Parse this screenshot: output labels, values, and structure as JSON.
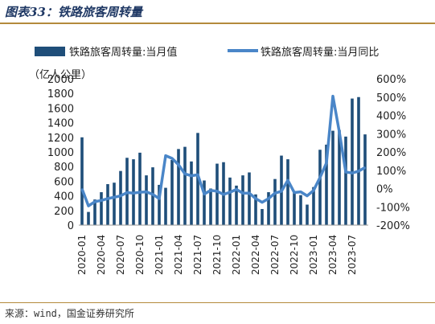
{
  "figure_title": "图表33：铁路旅客周转量",
  "source": "来源：wind，国金证券研究所",
  "chart_data": {
    "type": "bar+line",
    "title": "图表33：铁路旅客周转量",
    "y_left_label": "（亿人公里）",
    "y_left_range": [
      0,
      2000
    ],
    "y_left_ticks": [
      "0",
      "200",
      "400",
      "600",
      "800",
      "1000",
      "1200",
      "1400",
      "1600",
      "1800",
      "2000"
    ],
    "y_right_range": [
      -200,
      600
    ],
    "y_right_ticks": [
      "-200%",
      "-100%",
      "0%",
      "100%",
      "200%",
      "300%",
      "400%",
      "500%",
      "600%"
    ],
    "x_tick_labels": [
      "2020-01",
      "2020-04",
      "2020-07",
      "2020-10",
      "2021-01",
      "2021-04",
      "2021-07",
      "2021-10",
      "2022-01",
      "2022-04",
      "2022-07",
      "2022-10",
      "2023-01",
      "2023-04",
      "2023-07"
    ],
    "legend_placement": "top",
    "categories": [
      "2020-01",
      "2020-02",
      "2020-03",
      "2020-04",
      "2020-05",
      "2020-06",
      "2020-07",
      "2020-08",
      "2020-09",
      "2020-10",
      "2020-11",
      "2020-12",
      "2021-01",
      "2021-02",
      "2021-03",
      "2021-04",
      "2021-05",
      "2021-06",
      "2021-07",
      "2021-08",
      "2021-09",
      "2021-10",
      "2021-11",
      "2021-12",
      "2022-01",
      "2022-02",
      "2022-03",
      "2022-04",
      "2022-05",
      "2022-06",
      "2022-07",
      "2022-08",
      "2022-09",
      "2022-10",
      "2022-11",
      "2022-12",
      "2023-01",
      "2023-02",
      "2023-03",
      "2023-04",
      "2023-05",
      "2023-06",
      "2023-07",
      "2023-08",
      "2023-09"
    ],
    "series": [
      {
        "name": "铁路旅客周转量:当月值",
        "kind": "bar",
        "axis": "left",
        "color": "#1f4e79",
        "values": [
          1200,
          180,
          350,
          450,
          560,
          580,
          740,
          920,
          900,
          990,
          680,
          790,
          550,
          510,
          890,
          1040,
          1070,
          870,
          1260,
          610,
          500,
          840,
          860,
          650,
          540,
          680,
          720,
          420,
          220,
          450,
          630,
          950,
          900,
          450,
          410,
          280,
          520,
          1030,
          1100,
          1290,
          1300,
          1210,
          1730,
          1750,
          1240
        ]
      },
      {
        "name": "铁路旅客周转量:当月同比",
        "kind": "line",
        "axis": "right",
        "color": "#4a86c8",
        "values": [
          -2,
          -95,
          -72,
          -65,
          -55,
          -48,
          -40,
          -22,
          -25,
          -20,
          -18,
          -32,
          -55,
          180,
          165,
          130,
          80,
          70,
          75,
          -30,
          -10,
          -15,
          -32,
          -20,
          -5,
          -25,
          -25,
          -55,
          -75,
          -55,
          -25,
          -15,
          45,
          -22,
          -18,
          -40,
          -10,
          60,
          140,
          505,
          310,
          90,
          85,
          95,
          115
        ]
      }
    ]
  }
}
